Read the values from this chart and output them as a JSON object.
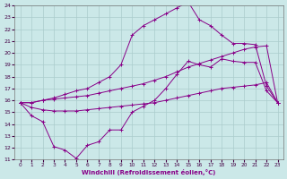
{
  "xlabel": "Windchill (Refroidissement éolien,°C)",
  "bg_color": "#cbe8e8",
  "line_color": "#880088",
  "grid_color": "#aacccc",
  "x_ticks": [
    0,
    1,
    2,
    3,
    4,
    5,
    6,
    7,
    8,
    9,
    10,
    11,
    12,
    13,
    14,
    15,
    16,
    17,
    18,
    19,
    20,
    21,
    22,
    23
  ],
  "ylim": [
    11,
    24
  ],
  "xlim": [
    -0.5,
    23.5
  ],
  "line1_x": [
    0,
    1,
    2,
    3,
    4,
    5,
    6,
    7,
    8,
    9,
    10,
    11,
    12,
    13,
    14,
    15,
    16,
    17,
    18,
    19,
    20,
    21,
    22,
    23
  ],
  "line1_y": [
    15.8,
    14.7,
    14.2,
    12.1,
    11.8,
    11.1,
    12.2,
    12.5,
    13.5,
    13.5,
    15.0,
    15.5,
    16.0,
    17.0,
    18.2,
    19.3,
    19.0,
    18.8,
    19.5,
    19.3,
    19.2,
    19.2,
    16.8,
    15.8
  ],
  "line2_x": [
    0,
    1,
    2,
    3,
    4,
    5,
    6,
    7,
    8,
    9,
    10,
    11,
    12,
    13,
    14,
    15,
    16,
    17,
    18,
    19,
    20,
    21,
    22,
    23
  ],
  "line2_y": [
    15.8,
    15.8,
    16.0,
    16.1,
    16.2,
    16.3,
    16.4,
    16.6,
    16.8,
    17.0,
    17.2,
    17.4,
    17.7,
    18.0,
    18.4,
    18.8,
    19.1,
    19.4,
    19.7,
    20.0,
    20.3,
    20.5,
    20.6,
    15.8
  ],
  "line3_x": [
    0,
    1,
    2,
    3,
    4,
    5,
    6,
    7,
    8,
    9,
    10,
    11,
    12,
    13,
    14,
    15,
    16,
    17,
    18,
    19,
    20,
    21,
    22,
    23
  ],
  "line3_y": [
    15.8,
    15.4,
    15.2,
    15.1,
    15.1,
    15.1,
    15.2,
    15.3,
    15.4,
    15.5,
    15.6,
    15.7,
    15.8,
    16.0,
    16.2,
    16.4,
    16.6,
    16.8,
    17.0,
    17.1,
    17.2,
    17.3,
    17.5,
    15.8
  ],
  "line4_x": [
    0,
    1,
    2,
    3,
    4,
    5,
    6,
    7,
    8,
    9,
    10,
    11,
    12,
    13,
    14,
    15,
    16,
    17,
    18,
    19,
    20,
    21,
    22,
    23
  ],
  "line4_y": [
    15.8,
    15.8,
    16.0,
    16.2,
    16.5,
    16.8,
    17.0,
    17.5,
    18.0,
    19.0,
    21.5,
    22.3,
    22.8,
    23.3,
    23.8,
    24.3,
    22.8,
    22.3,
    21.5,
    20.8,
    20.8,
    20.7,
    17.2,
    15.8
  ]
}
